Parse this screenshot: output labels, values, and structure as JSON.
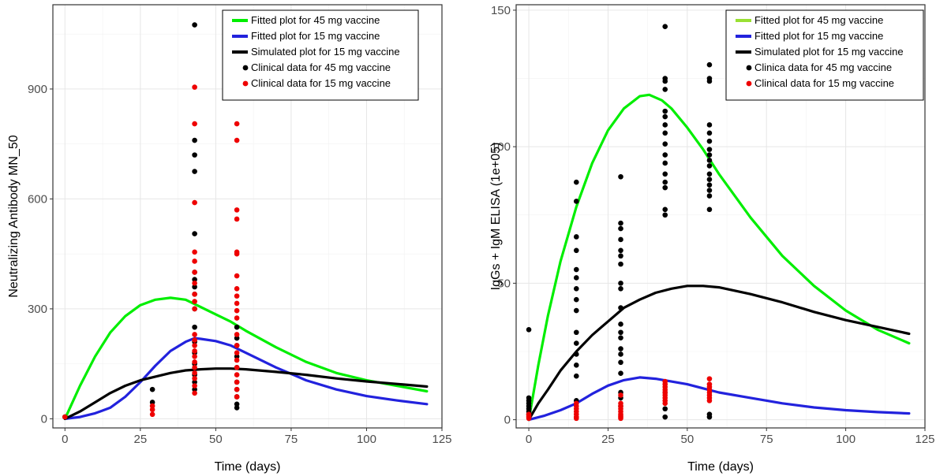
{
  "chart_data": [
    {
      "type": "scatter",
      "xlabel": "Time (days)",
      "ylabel": "Neutralizing Antibody MN_50",
      "xlim": [
        -4,
        125
      ],
      "ylim": [
        -25,
        1130
      ],
      "x_ticks": [
        0,
        25,
        50,
        75,
        100,
        125
      ],
      "y_ticks": [
        0,
        300,
        600,
        900
      ],
      "x_tick_labels": [
        "0",
        "25",
        "50",
        "75",
        "100",
        "125"
      ],
      "y_tick_labels": [
        "0",
        "300",
        "600",
        "900"
      ],
      "grid": true,
      "legend_position": "top-right",
      "legend": [
        {
          "label": "Fitted plot for 45 mg vaccine",
          "kind": "line",
          "color": "#00ee00"
        },
        {
          "label": "Fitted plot for 15 mg vaccine",
          "kind": "line",
          "color": "#2222dd"
        },
        {
          "label": "Simulated plot for 15 mg vaccine",
          "kind": "line",
          "color": "#000000"
        },
        {
          "label": "Clinical data for 45 mg vaccine",
          "kind": "point",
          "color": "#000000"
        },
        {
          "label": "Clinical data for 15 mg vaccine",
          "kind": "point",
          "color": "#ee0000"
        }
      ],
      "series": [
        {
          "kind": "line",
          "color": "#00ee00",
          "x": [
            0,
            5,
            10,
            15,
            20,
            25,
            30,
            35,
            40,
            45,
            50,
            55,
            60,
            70,
            80,
            90,
            100,
            110,
            120
          ],
          "y": [
            0,
            90,
            170,
            235,
            280,
            310,
            325,
            330,
            325,
            305,
            285,
            265,
            240,
            195,
            155,
            125,
            105,
            90,
            75
          ]
        },
        {
          "kind": "line",
          "color": "#2222dd",
          "x": [
            0,
            5,
            10,
            15,
            20,
            25,
            30,
            35,
            40,
            43,
            45,
            50,
            55,
            60,
            70,
            80,
            90,
            100,
            110,
            120
          ],
          "y": [
            0,
            5,
            15,
            30,
            60,
            100,
            145,
            185,
            210,
            220,
            218,
            212,
            200,
            180,
            140,
            105,
            80,
            62,
            50,
            40
          ]
        },
        {
          "kind": "line",
          "color": "#000000",
          "x": [
            0,
            5,
            10,
            15,
            20,
            25,
            30,
            35,
            40,
            45,
            50,
            55,
            60,
            70,
            80,
            90,
            100,
            110,
            120
          ],
          "y": [
            0,
            20,
            45,
            70,
            90,
            105,
            115,
            125,
            132,
            135,
            137,
            137,
            135,
            128,
            120,
            110,
            102,
            95,
            88
          ]
        },
        {
          "kind": "points",
          "color": "#000000",
          "x": [
            0,
            29,
            29,
            43,
            43,
            43,
            43,
            43,
            43,
            43,
            43,
            43,
            43,
            43,
            43,
            43,
            43,
            43,
            43,
            43,
            57,
            57,
            57,
            57,
            57,
            57,
            57,
            57,
            57,
            57
          ],
          "y": [
            5,
            80,
            45,
            1075,
            760,
            720,
            675,
            505,
            400,
            380,
            360,
            340,
            300,
            250,
            210,
            180,
            150,
            120,
            100,
            80,
            250,
            220,
            200,
            170,
            140,
            100,
            80,
            60,
            40,
            30
          ]
        },
        {
          "kind": "points",
          "color": "#ee0000",
          "x": [
            0,
            29,
            29,
            29,
            43,
            43,
            43,
            43,
            43,
            43,
            43,
            43,
            43,
            43,
            43,
            43,
            43,
            43,
            43,
            43,
            43,
            43,
            43,
            43,
            43,
            57,
            57,
            57,
            57,
            57,
            57,
            57,
            57,
            57,
            57,
            57,
            57,
            57,
            57,
            57,
            57,
            57,
            57,
            57,
            57,
            57
          ],
          "y": [
            5,
            35,
            25,
            12,
            905,
            805,
            590,
            455,
            430,
            400,
            370,
            340,
            320,
            300,
            230,
            215,
            200,
            185,
            170,
            155,
            140,
            125,
            110,
            90,
            70,
            805,
            760,
            570,
            545,
            455,
            450,
            390,
            355,
            335,
            315,
            295,
            275,
            230,
            200,
            180,
            160,
            140,
            120,
            100,
            80,
            60
          ]
        }
      ]
    },
    {
      "type": "scatter",
      "xlabel": "Time (days)",
      "ylabel": "IgGs + IgM  ELISA (1e+05)",
      "xlim": [
        -4,
        125
      ],
      "ylim": [
        -3,
        152
      ],
      "x_ticks": [
        0,
        25,
        50,
        75,
        100,
        125
      ],
      "y_ticks": [
        0,
        50,
        100,
        150
      ],
      "x_tick_labels": [
        "0",
        "25",
        "50",
        "75",
        "100",
        "125"
      ],
      "y_tick_labels": [
        "0",
        "50",
        "100",
        "150"
      ],
      "grid": true,
      "legend_position": "top-right",
      "legend": [
        {
          "label": "Fitted plot for 45 mg vaccine",
          "kind": "line",
          "color": "#99e033"
        },
        {
          "label": "Fitted plot for 15 mg vaccine",
          "kind": "line",
          "color": "#2222dd"
        },
        {
          "label": "Simulated plot for 15 mg vaccine",
          "kind": "line",
          "color": "#000000"
        },
        {
          "label": "Clinica data for 45 mg vaccine",
          "kind": "point",
          "color": "#000000"
        },
        {
          "label": "Clinical data for 15 mg vaccine",
          "kind": "point",
          "color": "#ee0000"
        }
      ],
      "series": [
        {
          "kind": "line",
          "color": "#00ee00",
          "x": [
            0,
            3,
            6,
            10,
            15,
            20,
            25,
            30,
            35,
            38,
            42,
            45,
            50,
            55,
            60,
            70,
            80,
            90,
            100,
            110,
            120
          ],
          "y": [
            0,
            20,
            38,
            58,
            78,
            94,
            106,
            114,
            118.5,
            119,
            117,
            114,
            107,
            99,
            90,
            74,
            60,
            49,
            40,
            33,
            28
          ]
        },
        {
          "kind": "line",
          "color": "#2222dd",
          "x": [
            0,
            5,
            10,
            15,
            20,
            25,
            30,
            35,
            40,
            45,
            50,
            55,
            60,
            70,
            80,
            90,
            100,
            110,
            120
          ],
          "y": [
            0,
            1.5,
            3.5,
            6,
            9.5,
            12.5,
            14.5,
            15.5,
            15,
            14,
            13,
            11.5,
            10,
            8,
            6,
            4.5,
            3.5,
            2.8,
            2.3
          ]
        },
        {
          "kind": "line",
          "color": "#000000",
          "x": [
            0,
            3,
            6,
            10,
            15,
            20,
            25,
            30,
            35,
            40,
            45,
            50,
            55,
            60,
            70,
            80,
            90,
            100,
            110,
            120
          ],
          "y": [
            0,
            6,
            11,
            18,
            25,
            31,
            36,
            41,
            44,
            46.5,
            48,
            49,
            49,
            48.5,
            46,
            43,
            39.5,
            36.5,
            34,
            31.5
          ]
        },
        {
          "kind": "points",
          "color": "#000000",
          "x": [
            0,
            0,
            0,
            0,
            0,
            0,
            0,
            0,
            15,
            15,
            15,
            15,
            15,
            15,
            15,
            15,
            15,
            15,
            15,
            15,
            15,
            15,
            15,
            29,
            29,
            29,
            29,
            29,
            29,
            29,
            29,
            29,
            29,
            29,
            29,
            29,
            29,
            29,
            29,
            29,
            29,
            29,
            29,
            43,
            43,
            43,
            43,
            43,
            43,
            43,
            43,
            43,
            43,
            43,
            43,
            43,
            43,
            43,
            43,
            43,
            43,
            43,
            57,
            57,
            57,
            57,
            57,
            57,
            57,
            57,
            57,
            57,
            57,
            57,
            57,
            57,
            57,
            57,
            57,
            57
          ],
          "y": [
            33,
            8,
            7,
            6,
            5,
            4,
            3,
            2,
            87,
            80,
            67,
            62,
            55,
            52,
            48,
            44,
            40,
            32,
            28,
            24,
            20,
            16,
            7,
            89,
            72,
            70,
            66,
            62,
            60,
            57,
            50,
            48,
            41,
            35,
            32,
            30,
            26,
            24,
            21,
            17,
            10,
            8,
            5,
            144,
            125,
            124,
            121,
            113,
            111,
            108,
            105,
            101,
            97,
            94,
            90,
            87,
            85,
            77,
            75,
            10,
            4,
            1,
            130,
            125,
            124,
            108,
            105,
            102,
            99,
            97,
            95,
            93,
            90,
            88,
            86,
            84,
            82,
            77,
            2,
            1
          ]
        },
        {
          "kind": "points",
          "color": "#ee0000",
          "x": [
            0,
            0,
            0,
            0,
            15,
            15,
            15,
            15,
            15,
            15,
            15,
            29,
            29,
            29,
            29,
            29,
            29,
            29,
            29,
            29,
            43,
            43,
            43,
            43,
            43,
            43,
            43,
            43,
            43,
            57,
            57,
            57,
            57,
            57,
            57,
            57,
            57
          ],
          "y": [
            2,
            1.5,
            1,
            0.5,
            6,
            5,
            4,
            3,
            2,
            1,
            0.5,
            9,
            6,
            5,
            4,
            3,
            2,
            1.5,
            1,
            0.5,
            14,
            13,
            12,
            11,
            10,
            9,
            8,
            7,
            6,
            15,
            13,
            12,
            11,
            10,
            9,
            8,
            7
          ]
        }
      ]
    }
  ]
}
